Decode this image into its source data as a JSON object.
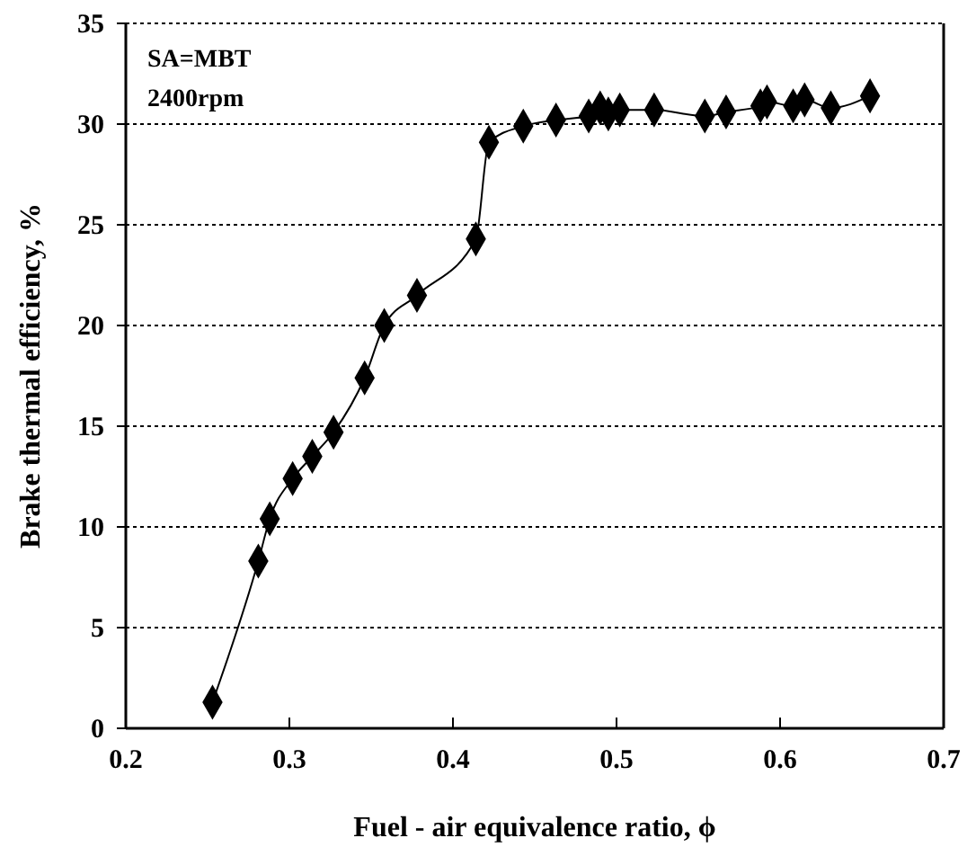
{
  "chart_data": {
    "type": "line",
    "xlabel": "Fuel - air equivalence ratio, ϕ",
    "ylabel": "Brake thermal efficiency, %",
    "annotations": [
      "SA=MBT",
      "2400rpm"
    ],
    "xlim": [
      0.2,
      0.7
    ],
    "xticks": [
      0.2,
      0.3,
      0.4,
      0.5,
      0.6,
      0.7
    ],
    "ylim": [
      0,
      35
    ],
    "yticks": [
      0,
      5,
      10,
      15,
      20,
      25,
      30,
      35
    ],
    "grid": "y",
    "marker": "diamond",
    "line_style": "solid",
    "series": [
      {
        "color": "#000000",
        "x": [
          0.253,
          0.281,
          0.288,
          0.302,
          0.314,
          0.327,
          0.346,
          0.358,
          0.378,
          0.414,
          0.422,
          0.443,
          0.463,
          0.483,
          0.49,
          0.495,
          0.502,
          0.523,
          0.554,
          0.567,
          0.588,
          0.592,
          0.608,
          0.615,
          0.631,
          0.655
        ],
        "values": [
          1.3,
          8.3,
          10.4,
          12.4,
          13.5,
          14.7,
          17.4,
          20,
          21.5,
          24.3,
          29.1,
          29.9,
          30.2,
          30.4,
          30.8,
          30.5,
          30.7,
          30.7,
          30.4,
          30.6,
          30.9,
          31.1,
          30.9,
          31.2,
          30.8,
          31.4
        ]
      }
    ]
  }
}
